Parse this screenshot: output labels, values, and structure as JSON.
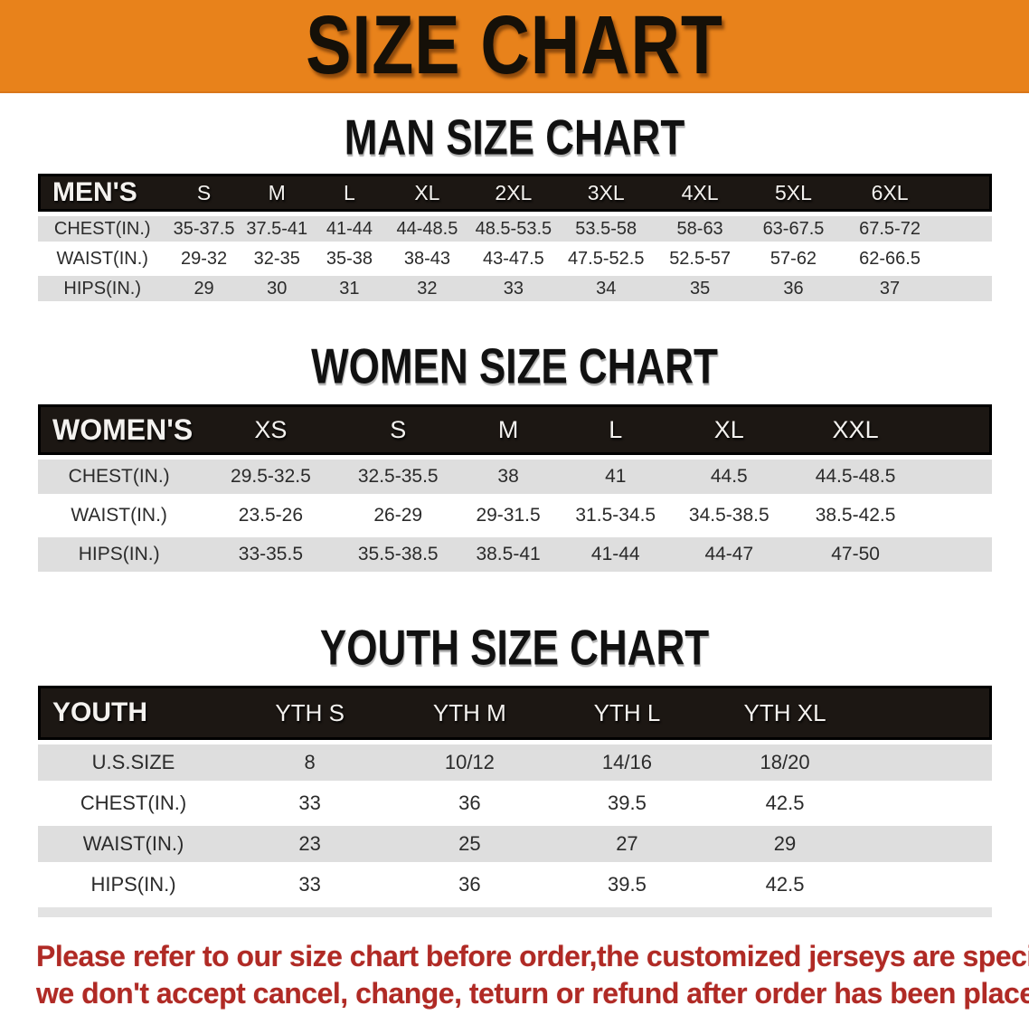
{
  "colors": {
    "banner_bg": "#e8821b",
    "header_bar": "#1c1713",
    "row_gray": "#dedede",
    "footnote_red": "#b02a25"
  },
  "banner": {
    "title": "SIZE CHART"
  },
  "sections": [
    {
      "heading": "MAN SIZE CHART",
      "table": {
        "header_label": "MEN'S",
        "columns": [
          "S",
          "M",
          "L",
          "XL",
          "2XL",
          "3XL",
          "4XL",
          "5XL",
          "6XL"
        ],
        "rows": [
          {
            "label": "CHEST(IN.)",
            "values": [
              "35-37.5",
              "37.5-41",
              "41-44",
              "44-48.5",
              "48.5-53.5",
              "53.5-58",
              "58-63",
              "63-67.5",
              "67.5-72"
            ]
          },
          {
            "label": "WAIST(IN.)",
            "values": [
              "29-32",
              "32-35",
              "35-38",
              "38-43",
              "43-47.5",
              "47.5-52.5",
              "52.5-57",
              "57-62",
              "62-66.5"
            ]
          },
          {
            "label": "HIPS(IN.)",
            "values": [
              "29",
              "30",
              "31",
              "32",
              "33",
              "34",
              "35",
              "36",
              "37"
            ]
          }
        ]
      }
    },
    {
      "heading": "WOMEN SIZE CHART",
      "table": {
        "header_label": "WOMEN'S",
        "columns": [
          "XS",
          "S",
          "M",
          "L",
          "XL",
          "XXL"
        ],
        "rows": [
          {
            "label": "CHEST(IN.)",
            "values": [
              "29.5-32.5",
              "32.5-35.5",
              "38",
              "41",
              "44.5",
              "44.5-48.5"
            ]
          },
          {
            "label": "WAIST(IN.)",
            "values": [
              "23.5-26",
              "26-29",
              "29-31.5",
              "31.5-34.5",
              "34.5-38.5",
              "38.5-42.5"
            ]
          },
          {
            "label": "HIPS(IN.)",
            "values": [
              "33-35.5",
              "35.5-38.5",
              "38.5-41",
              "41-44",
              "44-47",
              "47-50"
            ]
          }
        ]
      }
    },
    {
      "heading": "YOUTH SIZE CHART",
      "table": {
        "header_label": "YOUTH",
        "columns": [
          "YTH S",
          "YTH M",
          "YTH L",
          "YTH XL"
        ],
        "rows": [
          {
            "label": "U.S.SIZE",
            "values": [
              "8",
              "10/12",
              "14/16",
              "18/20"
            ]
          },
          {
            "label": "CHEST(IN.)",
            "values": [
              "33",
              "36",
              "39.5",
              "42.5"
            ]
          },
          {
            "label": "WAIST(IN.)",
            "values": [
              "23",
              "25",
              "27",
              "29"
            ]
          },
          {
            "label": "HIPS(IN.)",
            "values": [
              "33",
              "36",
              "39.5",
              "42.5"
            ]
          }
        ]
      }
    }
  ],
  "footnote": {
    "line1": "Please refer to our size chart before order,the customized jerseys are special products,",
    "line2": "we don't accept cancel, change, teturn or refund after order has been placed!"
  }
}
